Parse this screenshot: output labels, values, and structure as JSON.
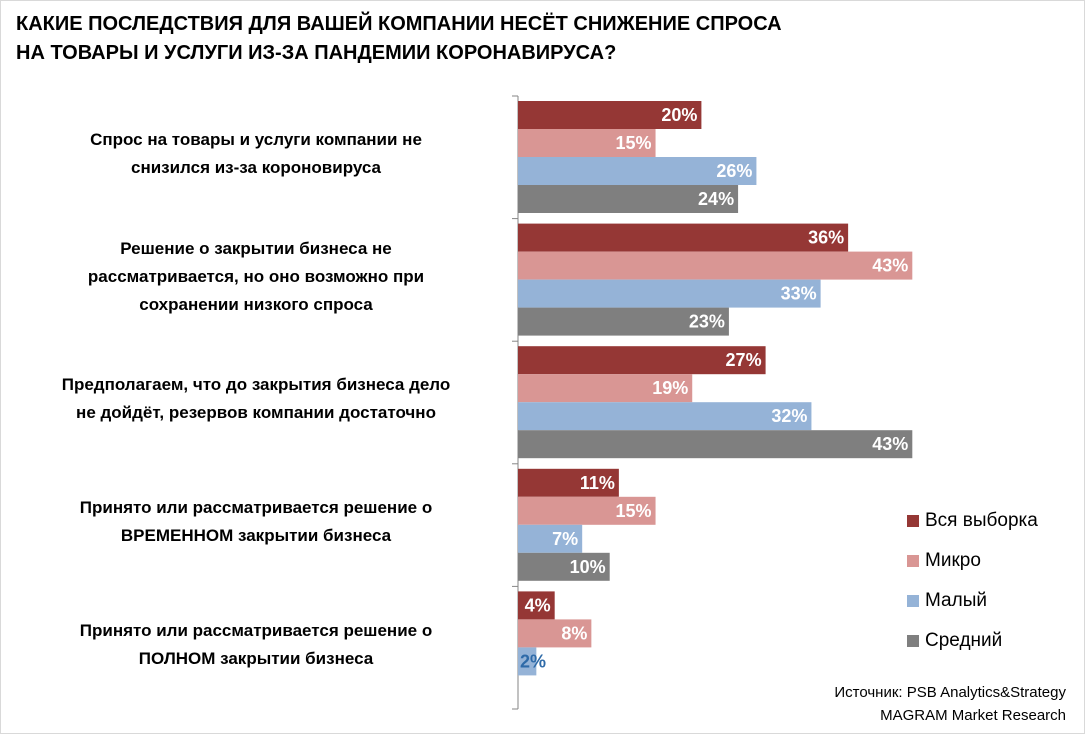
{
  "title_lines": [
    "КАКИЕ ПОСЛЕДСТВИЯ ДЛЯ ВАШЕЙ КОМПАНИИ НЕСЁТ СНИЖЕНИЕ СПРОСА",
    "НА ТОВАРЫ И УСЛУГИ ИЗ-ЗА ПАНДЕМИИ КОРОНАВИРУСА?"
  ],
  "source_lines": [
    "Источник: PSB Analytics&Strategy",
    "MAGRAM Market Research"
  ],
  "chart_data": {
    "type": "bar",
    "orientation": "horizontal",
    "title": "КАКИЕ ПОСЛЕДСТВИЯ ДЛЯ ВАШЕЙ КОМПАНИИ НЕСЁТ СНИЖЕНИЕ СПРОСА НА ТОВАРЫ И УСЛУГИ ИЗ-ЗА ПАНДЕМИИ КОРОНАВИРУСА?",
    "categories": [
      "Спрос на товары и услуги компании не снизился из-за короновируса",
      "Решение о закрытии бизнеса не рассматривается, но оно возможно при сохранении низкого спроса",
      "Предполагаем, что до закрытия бизнеса дело не дойдёт, резервов компании достаточно",
      "Принято или рассматривается решение о ВРЕМЕННОМ закрытии бизнеса",
      "Принято или рассматривается решение о ПОЛНОМ закрытии бизнеса"
    ],
    "category_lines": [
      [
        "Спрос на товары и услуги компании не",
        "снизился из-за короновируса"
      ],
      [
        "Решение о закрытии бизнеса не",
        "рассматривается, но оно возможно при",
        "сохранении низкого спроса"
      ],
      [
        "Предполагаем, что до закрытия бизнеса дело",
        "не дойдёт, резервов компании достаточно"
      ],
      [
        "Принято или рассматривается решение о",
        "ВРЕМЕННОМ закрытии бизнеса"
      ],
      [
        "Принято или рассматривается решение о",
        "ПОЛНОМ закрытии бизнеса"
      ]
    ],
    "series": [
      {
        "name": "Вся выборка",
        "color": "#953735",
        "values": [
          20,
          36,
          27,
          11,
          4
        ]
      },
      {
        "name": "Микро",
        "color": "#d99694",
        "values": [
          15,
          43,
          19,
          15,
          8
        ]
      },
      {
        "name": "Малый",
        "color": "#95b3d7",
        "values": [
          26,
          33,
          32,
          7,
          2
        ]
      },
      {
        "name": "Средний",
        "color": "#7f7f7f",
        "values": [
          24,
          23,
          43,
          10,
          null
        ]
      }
    ],
    "value_format": "percent",
    "data_label_color": "#ffffff",
    "legend": "right",
    "grid": false,
    "xlim": [
      0,
      45
    ]
  }
}
